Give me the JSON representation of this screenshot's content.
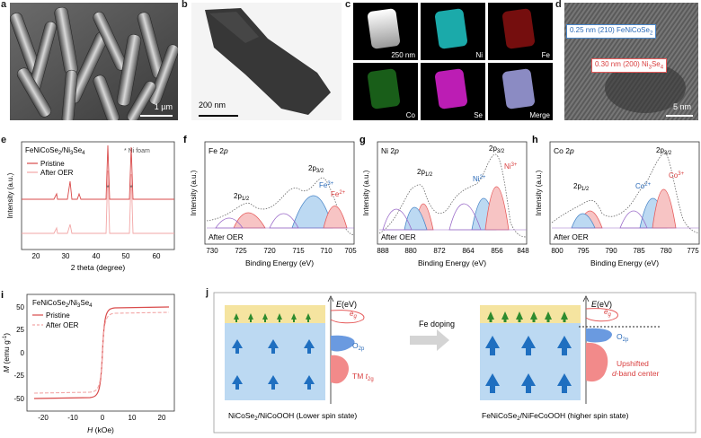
{
  "panels": {
    "a": {
      "letter": "a",
      "scale": "1 µm"
    },
    "b": {
      "letter": "b",
      "scale": "200 nm"
    },
    "c": {
      "letter": "c",
      "scale": "250 nm",
      "maps": [
        "",
        "Ni",
        "Fe",
        "Co",
        "Se",
        "Merge"
      ]
    },
    "d": {
      "letter": "d",
      "scale": "5 nm",
      "ann1": "0.25 nm (210) FeNiCoSe",
      "ann1_sub": "2",
      "ann2": "0.30 nm (200) Ni",
      "ann2_sub": "3",
      "ann2_tail": "Se",
      "ann2_sub2": "4"
    },
    "e": {
      "letter": "e",
      "title": "FeNiCoSe",
      "title_sub": "2",
      "title_tail": "/Ni",
      "title_sub2": "3",
      "title_tail2": "Se",
      "title_sub3": "4",
      "marker_label": "Ni foam",
      "legend": [
        "Pristine",
        "After OER"
      ],
      "xlabel": "2 theta (degree)",
      "ylabel": "Intensity (a.u.)",
      "xticks": [
        "20",
        "30",
        "40",
        "50",
        "60"
      ]
    },
    "f": {
      "letter": "f",
      "title": "Fe 2",
      "title_it": "p",
      "peak1": "2p",
      "peak1_sub": "1/2",
      "peak2": "2p",
      "peak2_sub": "3/2",
      "ion1": "Fe",
      "ion1_sup": "3+",
      "ion2": "Fe",
      "ion2_sup": "2+",
      "note": "After OER",
      "xlabel": "Binding Energy (eV)",
      "ylabel": "Intensity (a.u.)",
      "xticks": [
        "730",
        "725",
        "720",
        "715",
        "710",
        "705"
      ]
    },
    "g": {
      "letter": "g",
      "title": "Ni 2",
      "title_it": "p",
      "peak1": "2p",
      "peak1_sub": "1/2",
      "peak2": "2p",
      "peak2_sub": "3/2",
      "ion1": "Ni",
      "ion1_sup": "3+",
      "ion2": "Ni",
      "ion2_sup": "2+",
      "note": "After OER",
      "xlabel": "Binding Energy (eV)",
      "ylabel": "Intensity (a.u.)",
      "xticks": [
        "888",
        "880",
        "872",
        "864",
        "856",
        "848"
      ]
    },
    "h": {
      "letter": "h",
      "title": "Co 2",
      "title_it": "p",
      "peak1": "2p",
      "peak1_sub": "1/2",
      "peak2": "2p",
      "peak2_sub": "3/2",
      "ion1": "Co",
      "ion1_sup": "3+",
      "ion2": "Co",
      "ion2_sup": "2+",
      "note": "After OER",
      "xlabel": "Binding Energy (eV)",
      "ylabel": "Intensity (a.u.)",
      "xticks": [
        "800",
        "795",
        "790",
        "785",
        "780",
        "775"
      ]
    },
    "i": {
      "letter": "i",
      "title": "FeNiCoSe",
      "title_sub": "2",
      "title_tail": "/Ni",
      "title_sub2": "3",
      "title_tail2": "Se",
      "title_sub3": "4",
      "legend": [
        "Pristine",
        "After OER"
      ],
      "xlabel": "H",
      "xunit": "(kOe)",
      "ylabel": "M",
      "yunit": "(emu g",
      "yunit_sup": "-1",
      "yunit_tail": ")",
      "xticks": [
        "-20",
        "-10",
        "0",
        "10",
        "20"
      ],
      "yticks": [
        "50",
        "25",
        "0",
        "-25",
        "-50"
      ]
    },
    "j": {
      "letter": "j",
      "energy_axis": "E",
      "energy_unit": "(eV)",
      "eg": "e",
      "eg_sub": "g",
      "o2p": "O",
      "o2p_sub": "2p",
      "tm": "TM ",
      "tm_it": "t",
      "tm_sub": "2g",
      "doping": "Fe doping",
      "upshift1": "Upshifted",
      "upshift2": "d",
      "upshift2_tail": "-band center",
      "left_caption": "NiCoSe",
      "left_caption_sub": "2",
      "left_caption_tail": "/NiCoOOH (Lower spin state)",
      "right_caption": "FeNiCoSe",
      "right_caption_sub": "2",
      "right_caption_tail": "/NiFeCoOOH (higher spin state)"
    }
  },
  "colors": {
    "pristine": "#d94a4a",
    "after": "#f2a6a6",
    "blue": "#4a86c8",
    "red": "#e65a5a",
    "green": "#3a8a3a",
    "band_yellow": "#f5e4a0",
    "band_blue": "#bcd9f2"
  },
  "chart_data": [
    {
      "panel": "e",
      "type": "line",
      "xlabel": "2 theta (degree)",
      "ylabel": "Intensity (a.u.)",
      "xlim": [
        13,
        64
      ],
      "series": [
        {
          "name": "Pristine",
          "peaks_2theta": [
            30.2,
            33.3,
            36.8,
            44.5,
            51.8
          ]
        },
        {
          "name": "After OER",
          "peaks_2theta": [
            30.2,
            33.3,
            44.5,
            51.8
          ]
        }
      ]
    },
    {
      "panel": "f",
      "type": "line",
      "xlabel": "Binding Energy (eV)",
      "xlim": [
        731,
        705
      ],
      "peaks_eV": {
        "2p3/2 Fe3+": 712.2,
        "2p3/2 Fe2+": 709.8,
        "2p1/2": 724.5
      }
    },
    {
      "panel": "g",
      "type": "line",
      "xlabel": "Binding Energy (eV)",
      "xlim": [
        888,
        848
      ],
      "peaks_eV": {
        "2p3/2 Ni3+": 855.6,
        "2p3/2 Ni2+": 857.0,
        "2p1/2": 873.2
      }
    },
    {
      "panel": "h",
      "type": "line",
      "xlabel": "Binding Energy (eV)",
      "xlim": [
        802,
        775
      ],
      "peaks_eV": {
        "2p3/2 Co3+": 780.0,
        "2p3/2 Co2+": 781.5,
        "2p1/2": 796.0
      }
    },
    {
      "panel": "i",
      "type": "line",
      "xlabel": "H (kOe)",
      "ylabel": "M (emu g-1)",
      "xlim": [
        -25,
        25
      ],
      "ylim": [
        -55,
        55
      ],
      "series": [
        {
          "name": "Pristine",
          "saturation": 48
        },
        {
          "name": "After OER",
          "saturation": 42
        }
      ]
    }
  ]
}
